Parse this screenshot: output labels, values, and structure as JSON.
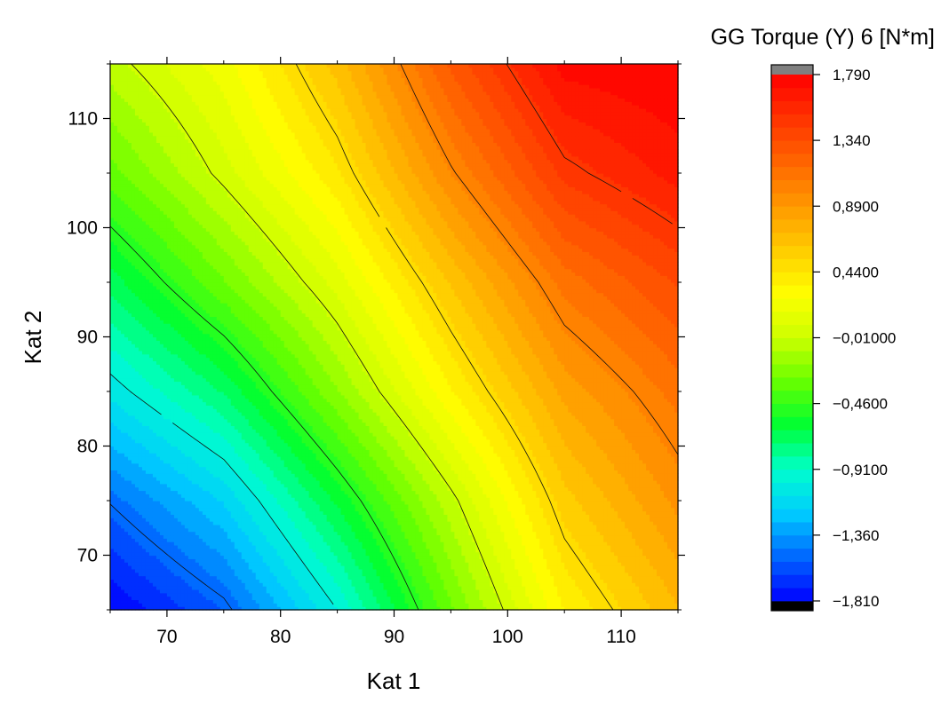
{
  "chart_data": {
    "type": "heatmap",
    "subtype": "filled-contour",
    "colorbar_title": "GG Torque (Y) 6 [N*m]",
    "xlabel": "Kat 1",
    "ylabel": "Kat 2",
    "xlim": [
      65,
      115
    ],
    "ylim": [
      65,
      115
    ],
    "x_ticks": [
      70,
      80,
      90,
      100,
      110
    ],
    "y_ticks": [
      70,
      80,
      90,
      100,
      110
    ],
    "x_tick_labels": [
      "70",
      "80",
      "90",
      "100",
      "110"
    ],
    "y_tick_labels": [
      "70",
      "80",
      "90",
      "100",
      "110"
    ],
    "x_grid": [
      65,
      75,
      85,
      95,
      105,
      115
    ],
    "y_grid": [
      65,
      75,
      85,
      95,
      105,
      115
    ],
    "z": [
      [
        -1.81,
        -1.54,
        -1.0,
        -0.3,
        0.35,
        0.7
      ],
      [
        -1.49,
        -1.17,
        -0.62,
        -0.04,
        0.58,
        0.92
      ],
      [
        -1.06,
        -0.72,
        -0.2,
        0.34,
        0.83,
        1.11
      ],
      [
        -0.69,
        -0.29,
        0.12,
        0.63,
        1.11,
        1.35
      ],
      [
        -0.32,
        0.04,
        0.42,
        0.98,
        1.46,
        1.65
      ],
      [
        -0.05,
        0.22,
        0.66,
        1.27,
        1.74,
        1.79
      ]
    ],
    "z_range": [
      -1.81,
      1.79
    ],
    "contour_levels": [
      -1.5,
      -1.0,
      -0.5,
      0.0,
      0.5,
      1.0,
      1.5
    ],
    "colorbar": {
      "ticks": [
        1.79,
        1.34,
        0.89,
        0.44,
        -0.01,
        -0.46,
        -0.91,
        -1.36,
        -1.81
      ],
      "tick_labels": [
        "1,790",
        "1,340",
        "0,8900",
        "0,4400",
        "−0,01000",
        "−0,4600",
        "−0,9100",
        "−1,360",
        "−1,810"
      ],
      "levels": 40,
      "over_color": "#808080",
      "under_color": "#000000"
    },
    "grid": false,
    "colormap": [
      "#0000ff",
      "#0066ff",
      "#00ccff",
      "#00ffcc",
      "#00ff33",
      "#66ff00",
      "#ccff00",
      "#ffff00",
      "#ffcc00",
      "#ff9900",
      "#ff6600",
      "#ff3300",
      "#ff0000"
    ]
  }
}
